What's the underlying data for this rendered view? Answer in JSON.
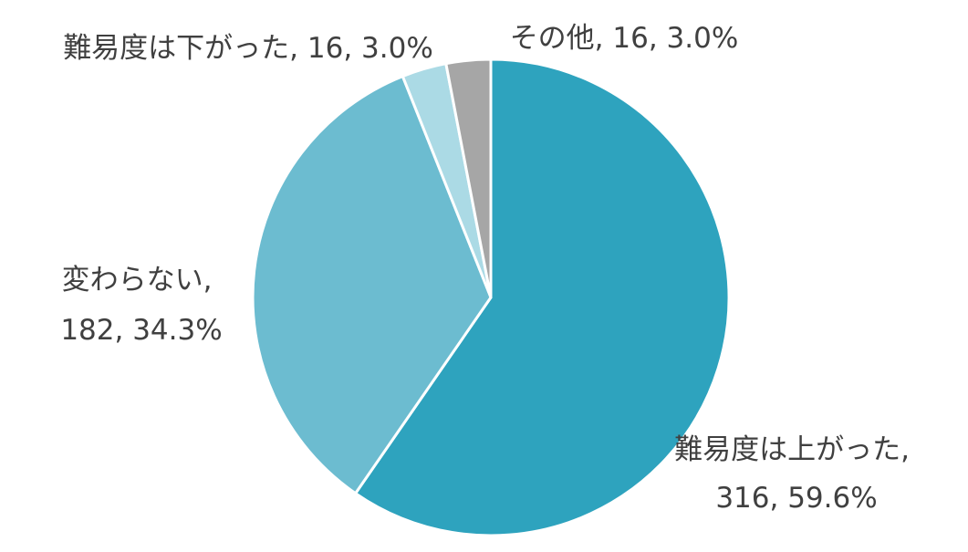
{
  "chart_data": {
    "type": "pie",
    "title": "",
    "start_angle_deg": 0,
    "direction": "clockwise",
    "legend": "none",
    "slices": [
      {
        "label": "難易度は上がった",
        "value": 316,
        "percent": "59.6%",
        "color": "#2EA3BE",
        "text_lines": [
          "難易度は上がった,",
          "316, 59.6%"
        ]
      },
      {
        "label": "変わらない",
        "value": 182,
        "percent": "34.3%",
        "color": "#6CBCD0",
        "text_lines": [
          "変わらない,",
          "182, 34.3%"
        ]
      },
      {
        "label": "難易度は下がった",
        "value": 16,
        "percent": "3.0%",
        "color": "#ABDAE5",
        "text_lines": [
          "難易度は下がった, 16, 3.0%"
        ]
      },
      {
        "label": "その他",
        "value": 16,
        "percent": "3.0%",
        "color": "#A6A6A6",
        "text_lines": [
          "その他, 16, 3.0%"
        ]
      }
    ]
  }
}
